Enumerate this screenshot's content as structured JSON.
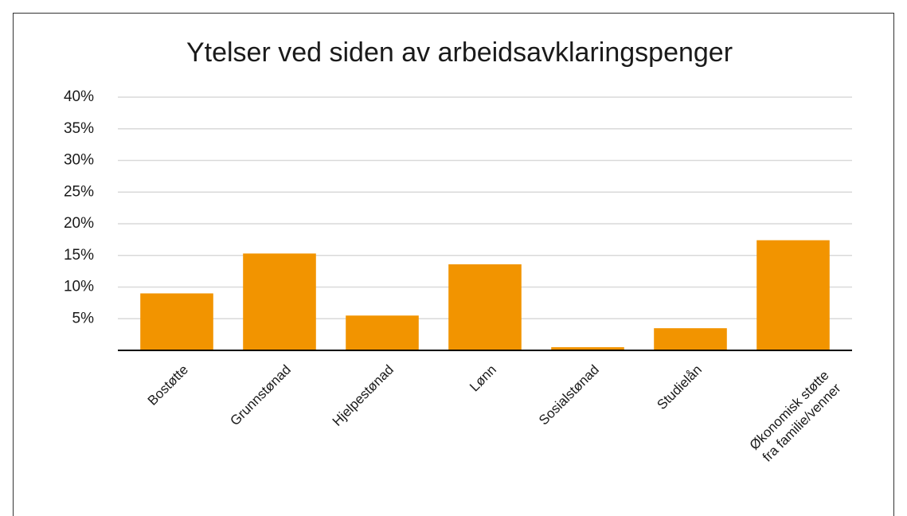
{
  "chart_data": {
    "type": "bar",
    "title": "Ytelser ved siden av arbeidsavklaringspenger",
    "categories": [
      "Bostøtte",
      "Grunnstønad",
      "Hjelpestønad",
      "Lønn",
      "Sosialstønad",
      "Studielån",
      "Økonomisk støtte\nfra familie/venner"
    ],
    "values": [
      9,
      15.3,
      5.5,
      13.6,
      0.5,
      3.5,
      17.4
    ],
    "color": "#f29400",
    "ylim": [
      0,
      40
    ],
    "yticks": [
      {
        "value": 5,
        "label": "5%"
      },
      {
        "value": 10,
        "label": "10%"
      },
      {
        "value": 15,
        "label": "15%"
      },
      {
        "value": 20,
        "label": "20%"
      },
      {
        "value": 25,
        "label": "25%"
      },
      {
        "value": 30,
        "label": "30%"
      },
      {
        "value": 35,
        "label": "35%"
      },
      {
        "value": 40,
        "label": "40%"
      }
    ],
    "grid": true
  }
}
